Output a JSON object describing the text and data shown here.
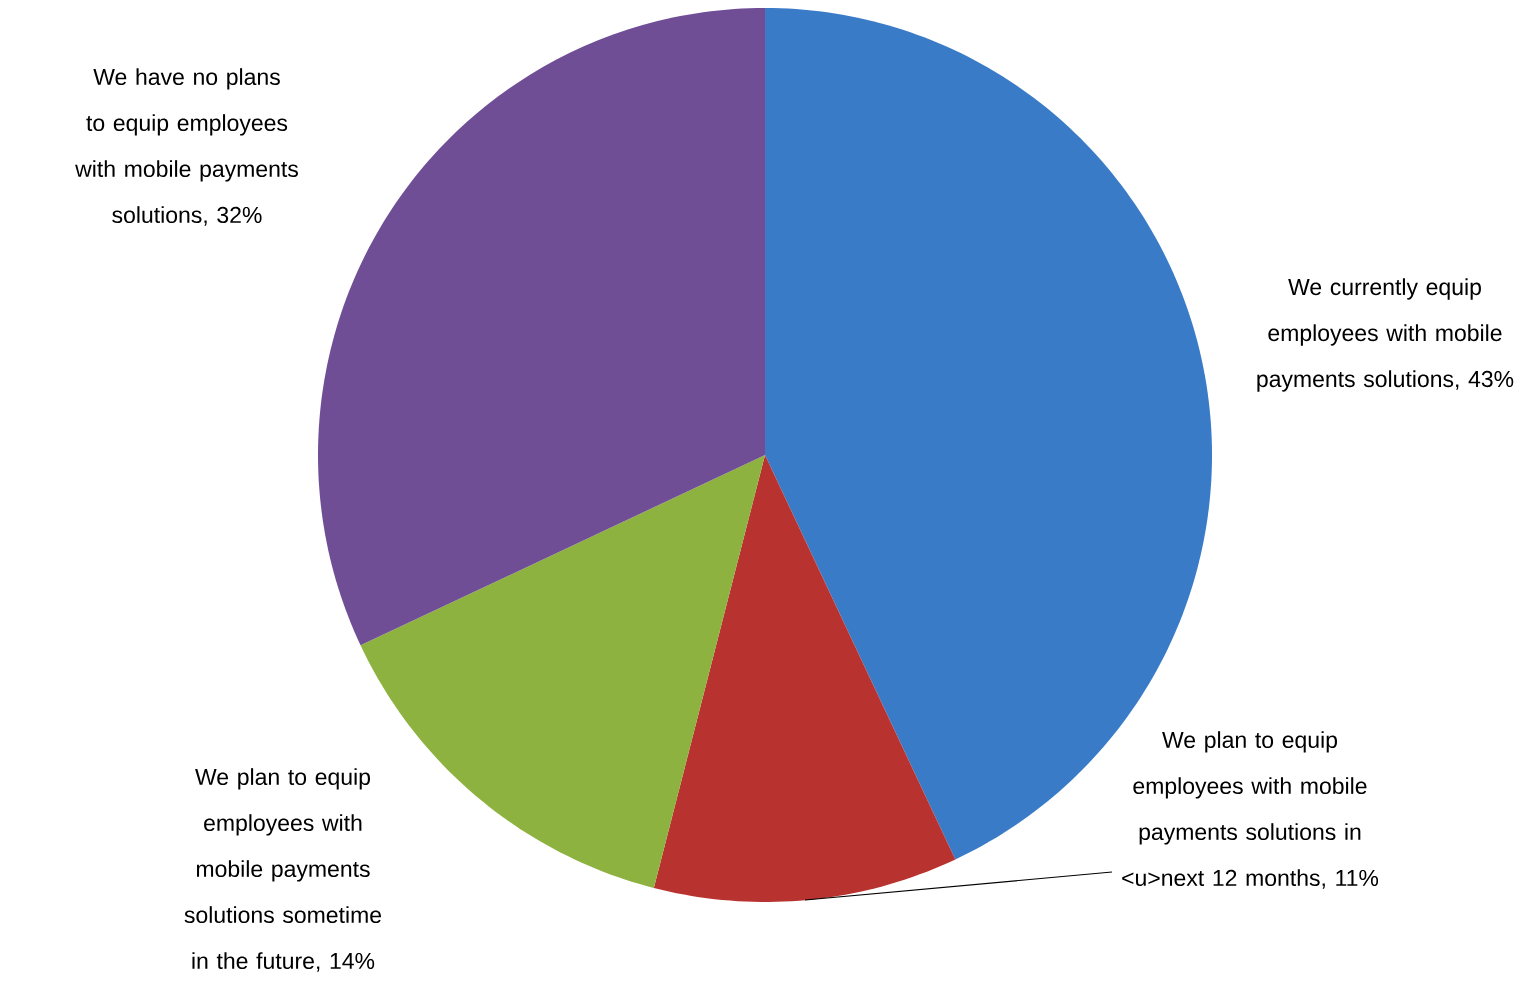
{
  "chart_data": {
    "type": "pie",
    "categories": [
      "We currently equip employees with mobile payments solutions, 43%",
      "We plan to equip employees with mobile payments solutions in <u>next 12 months, 11%",
      "We plan to equip employees with mobile payments solutions sometime in the future, 14%",
      "We have no plans to equip employees with mobile payments solutions, 32%"
    ],
    "values": [
      43,
      11,
      14,
      32
    ],
    "colors": [
      "#3a7bc8",
      "#b8322f",
      "#8db23f",
      "#6f4e96"
    ]
  }
}
